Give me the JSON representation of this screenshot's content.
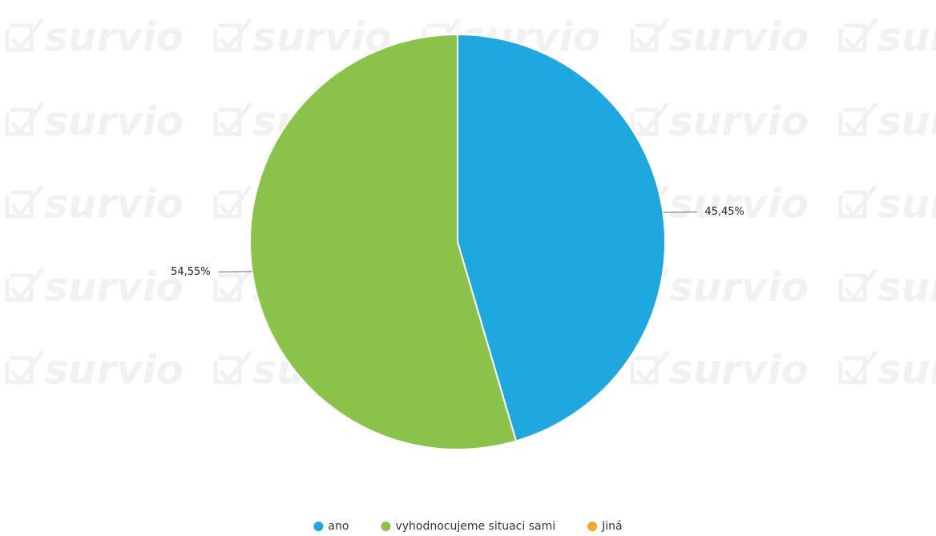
{
  "chart_data": {
    "type": "pie",
    "watermark": "survio",
    "categories": [
      "ano",
      "vyhodnocujeme situaci sami",
      "Jiná"
    ],
    "values": [
      45.45,
      54.55,
      0
    ],
    "value_labels": [
      "45,45%",
      "54,55%",
      null
    ],
    "colors": [
      "#1fa8e0",
      "#8bc34a",
      "#f5a623"
    ],
    "legend": "bottom"
  }
}
